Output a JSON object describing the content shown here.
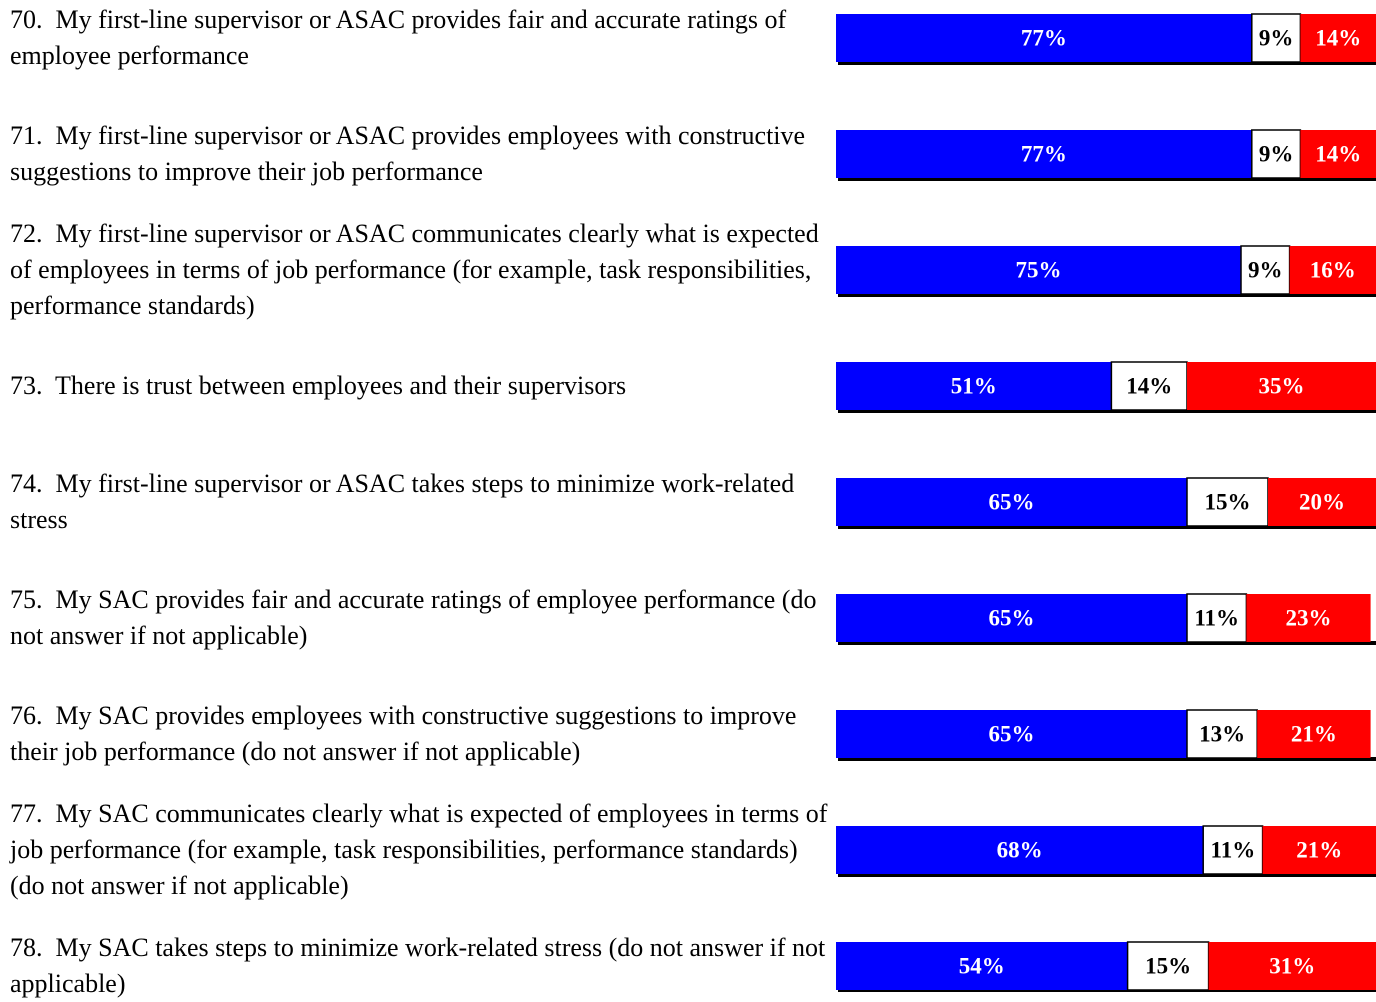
{
  "chart_data": {
    "type": "bar",
    "categories": [
      "70.  My first-line supervisor or ASAC provides fair and accurate ratings of employee performance",
      "71.  My first-line supervisor or ASAC provides employees with constructive suggestions to improve their job performance",
      "72.  My first-line supervisor or ASAC communicates clearly what is expected of employees in terms of job performance (for example, task responsibilities, performance standards)",
      "73.  There is trust between employees and their supervisors",
      "74.  My first-line supervisor or ASAC takes steps to minimize work-related stress",
      "75.  My SAC provides fair and accurate ratings of employee performance (do not answer if not applicable)",
      "76.  My SAC provides employees with constructive suggestions to improve their job performance (do not answer if not applicable)",
      "77.  My SAC communicates clearly what is expected of employees in terms of job performance (for example, task responsibilities, performance standards) (do not answer if not applicable)",
      "78.  My SAC takes steps to minimize work-related stress (do not answer if not applicable)"
    ],
    "series": [
      {
        "color": "#0000ff",
        "values": [
          77,
          77,
          75,
          51,
          65,
          65,
          65,
          68,
          54
        ],
        "value_labels": [
          "77%",
          "77%",
          "75%",
          "51%",
          "65%",
          "65%",
          "65%",
          "68%",
          "54%"
        ]
      },
      {
        "color": "#ffffff",
        "values": [
          9,
          9,
          9,
          14,
          15,
          11,
          13,
          11,
          15
        ],
        "value_labels": [
          "9%",
          "9%",
          "9%",
          "14%",
          "15%",
          "11%",
          "13%",
          "11%",
          "15%"
        ]
      },
      {
        "color": "#ff0000",
        "values": [
          14,
          14,
          16,
          35,
          20,
          23,
          21,
          21,
          31
        ],
        "value_labels": [
          "14%",
          "14%",
          "16%",
          "35%",
          "20%",
          "23%",
          "21%",
          "21%",
          "31%"
        ]
      }
    ],
    "xlim": [
      0,
      100
    ]
  }
}
